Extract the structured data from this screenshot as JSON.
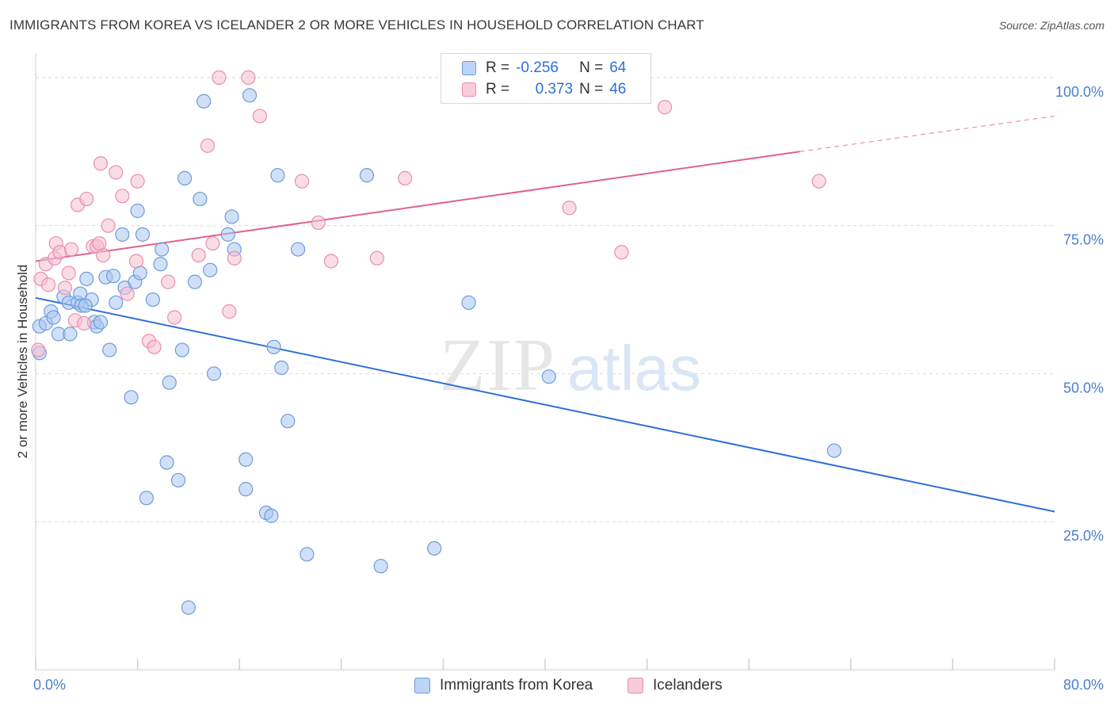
{
  "header": {
    "title": "IMMIGRANTS FROM KOREA VS ICELANDER 2 OR MORE VEHICLES IN HOUSEHOLD CORRELATION CHART",
    "source": "Source: ZipAtlas.com"
  },
  "watermark": {
    "zip": "ZIP",
    "atlas": "atlas"
  },
  "legend": {
    "rows": [
      {
        "r_label": "R =",
        "r_value": "-0.256",
        "n_label": "N =",
        "n_value": "64"
      },
      {
        "r_label": "R =",
        "r_value": "0.373",
        "n_label": "N =",
        "n_value": "46"
      }
    ]
  },
  "bottom_legend": {
    "series1": "Immigrants from Korea",
    "series2": "Icelanders"
  },
  "colors": {
    "korea_fill": "#a9c6f0",
    "korea_stroke": "#6f9bdb",
    "korea_line": "#2f6fd6",
    "ice_fill": "#f6bfd0",
    "ice_stroke": "#e98fae",
    "ice_line": "#e0628c",
    "accent_text": "#4a7fd1"
  },
  "chart_data": {
    "type": "scatter",
    "title": "IMMIGRANTS FROM KOREA VS ICELANDER 2 OR MORE VEHICLES IN HOUSEHOLD CORRELATION CHART",
    "xlabel": "",
    "ylabel": "2 or more Vehicles in Household",
    "xlim": [
      0,
      80
    ],
    "ylim": [
      0,
      104
    ],
    "x_tick_labels": {
      "left": "0.0%",
      "right": "80.0%"
    },
    "y_ticks": [
      {
        "value": 25,
        "label": "25.0%"
      },
      {
        "value": 50,
        "label": "50.0%"
      },
      {
        "value": 75,
        "label": "75.0%"
      },
      {
        "value": 100,
        "label": "100.0%"
      }
    ],
    "series": [
      {
        "name": "Immigrants from Korea",
        "r": -0.256,
        "n": 64,
        "trend": {
          "x0": 0,
          "y0": 62.8,
          "x1": 80,
          "y1": 26.7
        },
        "points": [
          [
            0.3,
            58.0
          ],
          [
            0.3,
            53.5
          ],
          [
            0.8,
            58.5
          ],
          [
            1.2,
            60.5
          ],
          [
            1.4,
            59.5
          ],
          [
            1.8,
            56.7
          ],
          [
            2.2,
            63.0
          ],
          [
            2.6,
            62.0
          ],
          [
            2.7,
            56.7
          ],
          [
            3.3,
            62.0
          ],
          [
            3.5,
            63.5
          ],
          [
            3.6,
            61.5
          ],
          [
            4.0,
            66.0
          ],
          [
            4.4,
            62.5
          ],
          [
            4.6,
            58.7
          ],
          [
            4.8,
            58.0
          ],
          [
            5.1,
            58.7
          ],
          [
            5.5,
            66.3
          ],
          [
            5.8,
            54.0
          ],
          [
            6.1,
            66.5
          ],
          [
            6.3,
            62.0
          ],
          [
            6.8,
            73.5
          ],
          [
            7.0,
            64.5
          ],
          [
            7.5,
            46.0
          ],
          [
            7.8,
            65.5
          ],
          [
            8.0,
            77.5
          ],
          [
            8.2,
            67.0
          ],
          [
            8.4,
            73.5
          ],
          [
            8.7,
            29.0
          ],
          [
            9.2,
            62.5
          ],
          [
            9.8,
            68.5
          ],
          [
            9.9,
            71.0
          ],
          [
            10.3,
            35.0
          ],
          [
            10.5,
            48.5
          ],
          [
            11.2,
            32.0
          ],
          [
            11.5,
            54.0
          ],
          [
            11.7,
            83.0
          ],
          [
            12.0,
            10.5
          ],
          [
            12.5,
            65.5
          ],
          [
            12.9,
            79.5
          ],
          [
            13.2,
            96.0
          ],
          [
            13.7,
            67.5
          ],
          [
            14.0,
            50.0
          ],
          [
            15.1,
            73.5
          ],
          [
            15.4,
            76.5
          ],
          [
            15.6,
            71.0
          ],
          [
            16.5,
            35.5
          ],
          [
            16.5,
            30.5
          ],
          [
            16.8,
            97.0
          ],
          [
            18.1,
            26.5
          ],
          [
            18.5,
            26.0
          ],
          [
            18.7,
            54.5
          ],
          [
            19.0,
            83.5
          ],
          [
            19.3,
            51.0
          ],
          [
            19.8,
            42.0
          ],
          [
            20.6,
            71.0
          ],
          [
            21.3,
            19.5
          ],
          [
            26.0,
            83.5
          ],
          [
            27.1,
            17.5
          ],
          [
            31.3,
            20.5
          ],
          [
            34.0,
            62.0
          ],
          [
            40.3,
            49.5
          ],
          [
            62.7,
            37.0
          ],
          [
            3.9,
            61.5
          ]
        ]
      },
      {
        "name": "Icelanders",
        "r": 0.373,
        "n": 46,
        "trend": {
          "x0": 0,
          "y0": 69.0,
          "x1": 60,
          "y1": 87.5,
          "dash_x1": 80,
          "dash_y1": 93.5
        },
        "points": [
          [
            0.2,
            54.0
          ],
          [
            0.4,
            66.0
          ],
          [
            0.8,
            68.5
          ],
          [
            1.0,
            65.0
          ],
          [
            1.5,
            69.5
          ],
          [
            1.6,
            72.0
          ],
          [
            1.9,
            70.5
          ],
          [
            2.3,
            64.5
          ],
          [
            2.6,
            67.0
          ],
          [
            2.8,
            71.0
          ],
          [
            3.1,
            59.0
          ],
          [
            3.3,
            78.5
          ],
          [
            3.8,
            58.5
          ],
          [
            4.0,
            79.5
          ],
          [
            4.5,
            71.5
          ],
          [
            4.8,
            71.5
          ],
          [
            5.1,
            85.5
          ],
          [
            5.3,
            70.0
          ],
          [
            5.7,
            75.0
          ],
          [
            6.3,
            84.0
          ],
          [
            6.8,
            80.0
          ],
          [
            7.2,
            63.5
          ],
          [
            7.9,
            69.0
          ],
          [
            8.0,
            82.5
          ],
          [
            8.9,
            55.5
          ],
          [
            9.3,
            54.5
          ],
          [
            10.4,
            65.5
          ],
          [
            10.9,
            59.5
          ],
          [
            12.8,
            70.0
          ],
          [
            13.5,
            88.5
          ],
          [
            13.9,
            72.0
          ],
          [
            14.4,
            100.0
          ],
          [
            15.2,
            60.5
          ],
          [
            15.6,
            69.5
          ],
          [
            16.7,
            100.0
          ],
          [
            17.6,
            93.5
          ],
          [
            20.9,
            82.5
          ],
          [
            22.2,
            75.5
          ],
          [
            23.2,
            69.0
          ],
          [
            26.8,
            69.5
          ],
          [
            29.0,
            83.0
          ],
          [
            41.9,
            78.0
          ],
          [
            46.0,
            70.5
          ],
          [
            49.4,
            95.0
          ],
          [
            61.5,
            82.5
          ],
          [
            5.0,
            72.0
          ]
        ]
      }
    ]
  }
}
